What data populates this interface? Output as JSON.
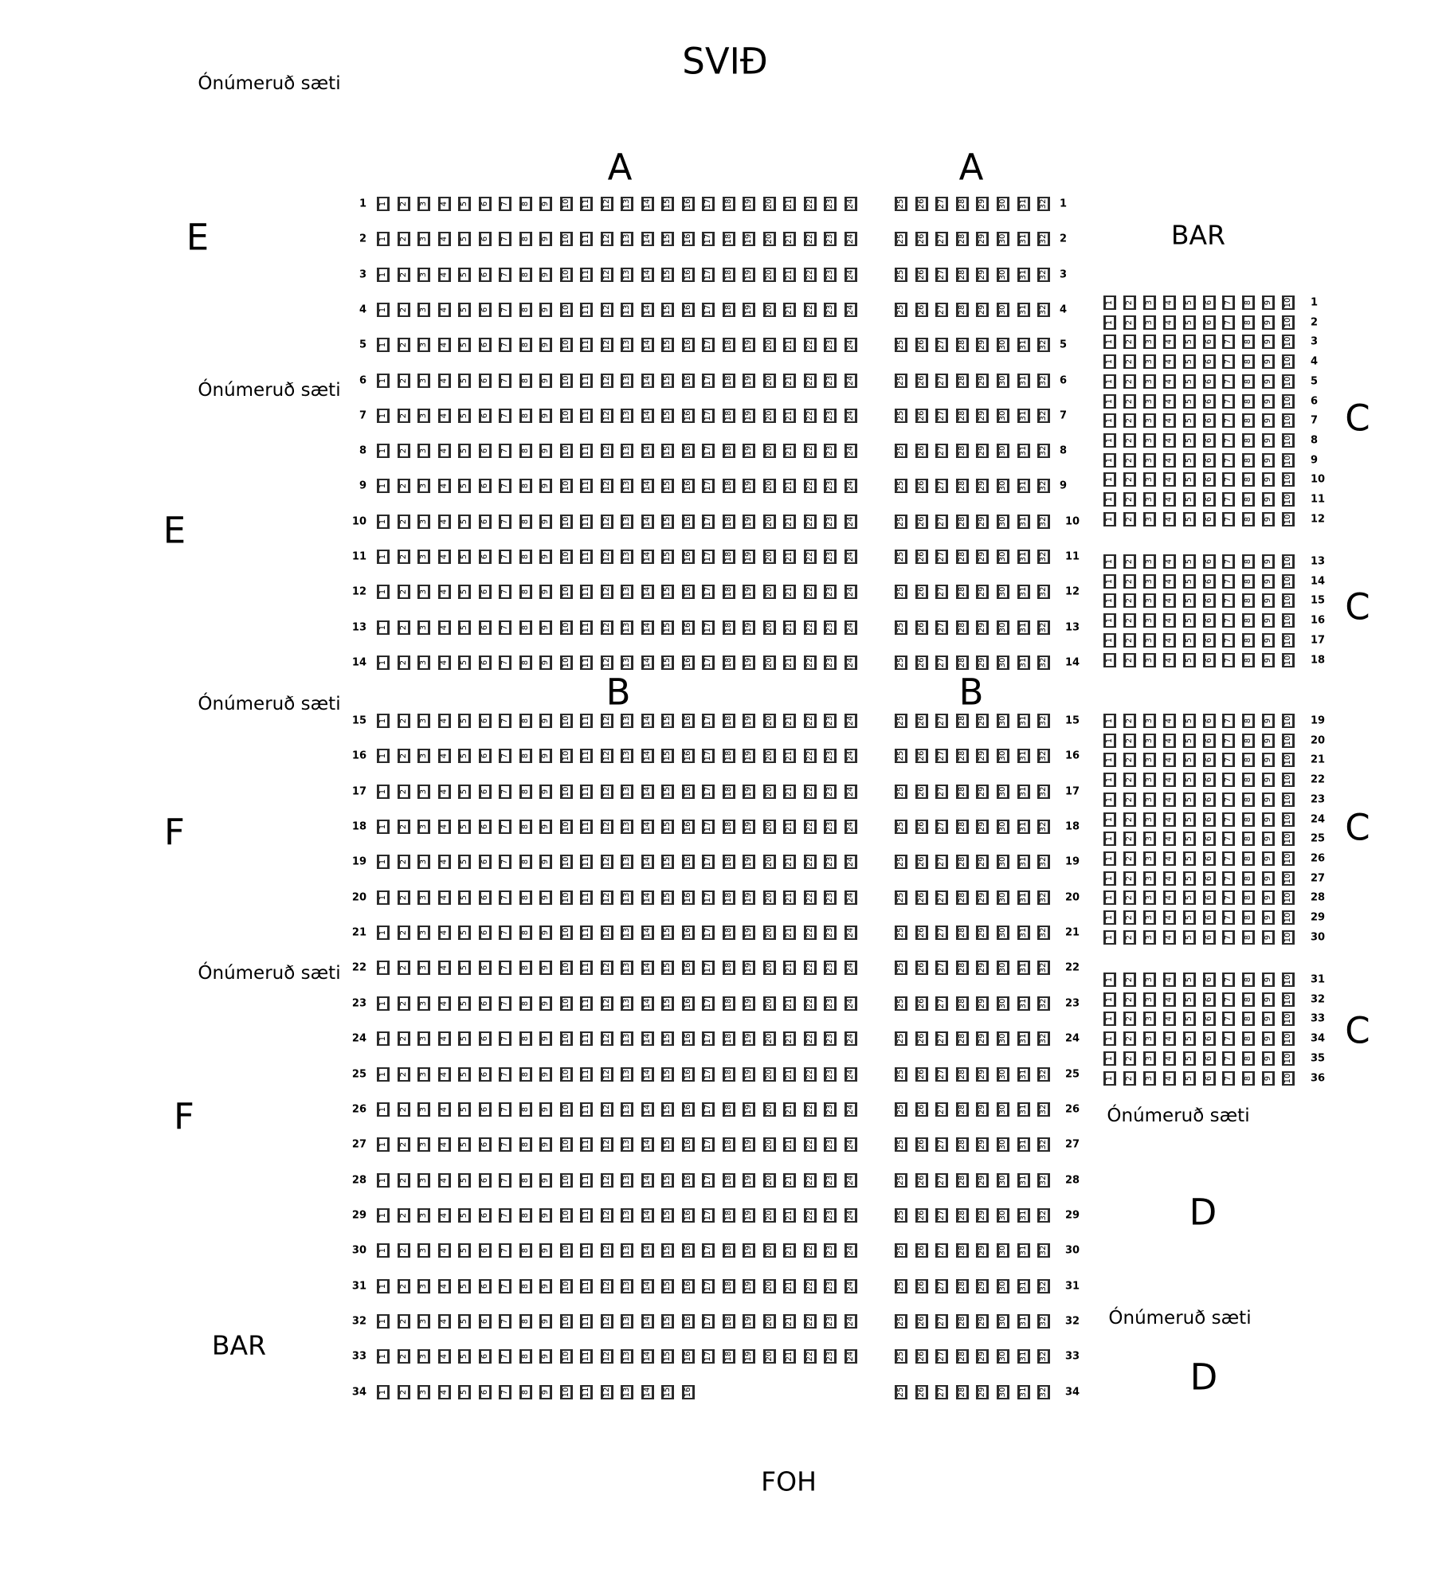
{
  "labels": {
    "stage": "SVIÐ",
    "unnumbered": "Ónúmeruð sæti",
    "section_a": "A",
    "section_b": "B",
    "section_c": "C",
    "section_d": "D",
    "section_e": "E",
    "section_f": "F",
    "bar": "BAR",
    "foh": "FOH"
  },
  "main_floor": {
    "rows": 34,
    "left_block_seats": [
      1,
      24
    ],
    "right_block_seats": [
      25,
      32
    ],
    "exceptions": [
      {
        "row": 34,
        "left_block_seats": [
          1,
          16
        ]
      }
    ]
  },
  "section_c": {
    "rows": 36,
    "seats": [
      1,
      10
    ],
    "groups": [
      [
        1,
        12
      ],
      [
        13,
        18
      ],
      [
        19,
        30
      ],
      [
        31,
        36
      ]
    ]
  }
}
